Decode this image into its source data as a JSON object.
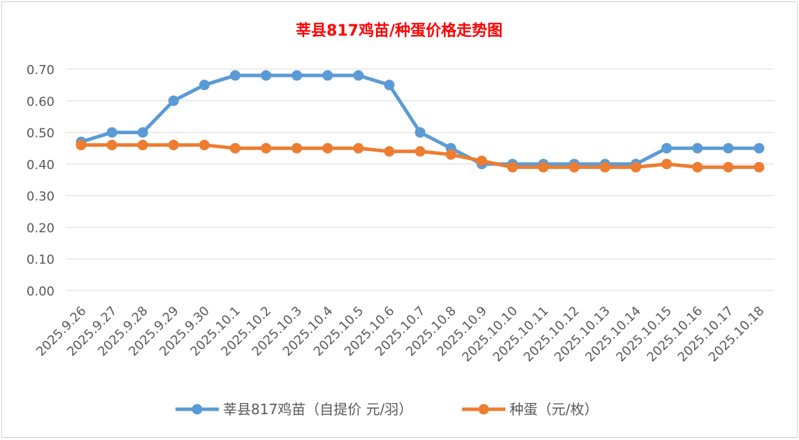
{
  "chart_data": {
    "type": "line",
    "title": "莘县817鸡苗/种蛋价格走势图",
    "title_color": "#ff0000",
    "xlabel": "",
    "ylabel": "",
    "ylim": [
      0,
      0.7
    ],
    "yticks": [
      "0.00",
      "0.10",
      "0.20",
      "0.30",
      "0.40",
      "0.50",
      "0.60",
      "0.70"
    ],
    "grid": true,
    "legend": "bottom",
    "categories": [
      "2025.9.26",
      "2025.9.27",
      "2025.9.28",
      "2025.9.29",
      "2025.9.30",
      "2025.10.1",
      "2025.10.2",
      "2025.10.3",
      "2025.10.4",
      "2025.10.5",
      "2025.10.6",
      "2025.10.7",
      "2025.10.8",
      "2025.10.9",
      "2025.10.10",
      "2025.10.11",
      "2025.10.12",
      "2025.10.13",
      "2025.10.14",
      "2025.10.15",
      "2025.10.16",
      "2025.10.17",
      "2025.10.18"
    ],
    "series": [
      {
        "name": "莘县817鸡苗（自提价 元/羽）",
        "color": "#5b9bd5",
        "values": [
          0.47,
          0.5,
          0.5,
          0.6,
          0.65,
          0.68,
          0.68,
          0.68,
          0.68,
          0.68,
          0.65,
          0.5,
          0.45,
          0.4,
          0.4,
          0.4,
          0.4,
          0.4,
          0.4,
          0.45,
          0.45,
          0.45,
          0.45
        ]
      },
      {
        "name": "种蛋（元/枚）",
        "color": "#ed7d31",
        "values": [
          0.46,
          0.46,
          0.46,
          0.46,
          0.46,
          0.45,
          0.45,
          0.45,
          0.45,
          0.45,
          0.44,
          0.44,
          0.43,
          0.41,
          0.39,
          0.39,
          0.39,
          0.39,
          0.39,
          0.4,
          0.39,
          0.39,
          0.39
        ]
      }
    ]
  }
}
